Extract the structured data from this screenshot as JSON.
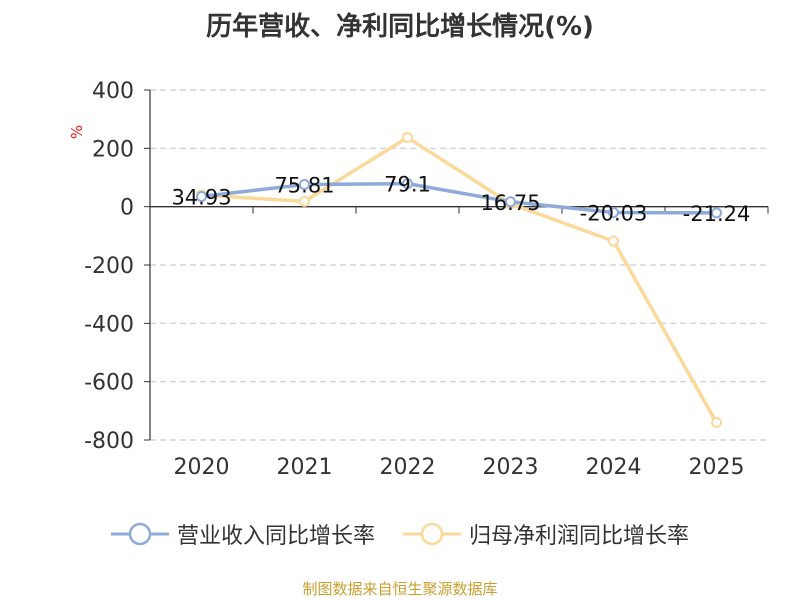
{
  "title": "历年营收、净利同比增长情况(%)",
  "source": "制图数据来自恒生聚源数据库",
  "colors": {
    "series1": "#8eaad8",
    "series2": "#fad99a",
    "grid": "#cccccc",
    "axis": "#333333"
  },
  "chart_data": {
    "type": "line",
    "title": "历年营收、净利同比增长情况(%)",
    "ylabel": "%",
    "categories": [
      "2020",
      "2021",
      "2022",
      "2023",
      "2024",
      "2025"
    ],
    "ylim": [
      -800,
      400
    ],
    "yticks": [
      400,
      200,
      0,
      -200,
      -400,
      -600,
      -800
    ],
    "grid": true,
    "legend_position": "bottom",
    "series": [
      {
        "name": "营业收入同比增长率",
        "values": [
          34.93,
          75.81,
          79.1,
          16.75,
          -20.03,
          -21.24
        ],
        "labels": [
          "34.93",
          "75.81",
          "79.1",
          "16.75",
          "-20.03",
          "-21.24"
        ]
      },
      {
        "name": "归母净利润同比增长率",
        "values": [
          40,
          18,
          237,
          10,
          -118,
          -740
        ]
      }
    ]
  }
}
